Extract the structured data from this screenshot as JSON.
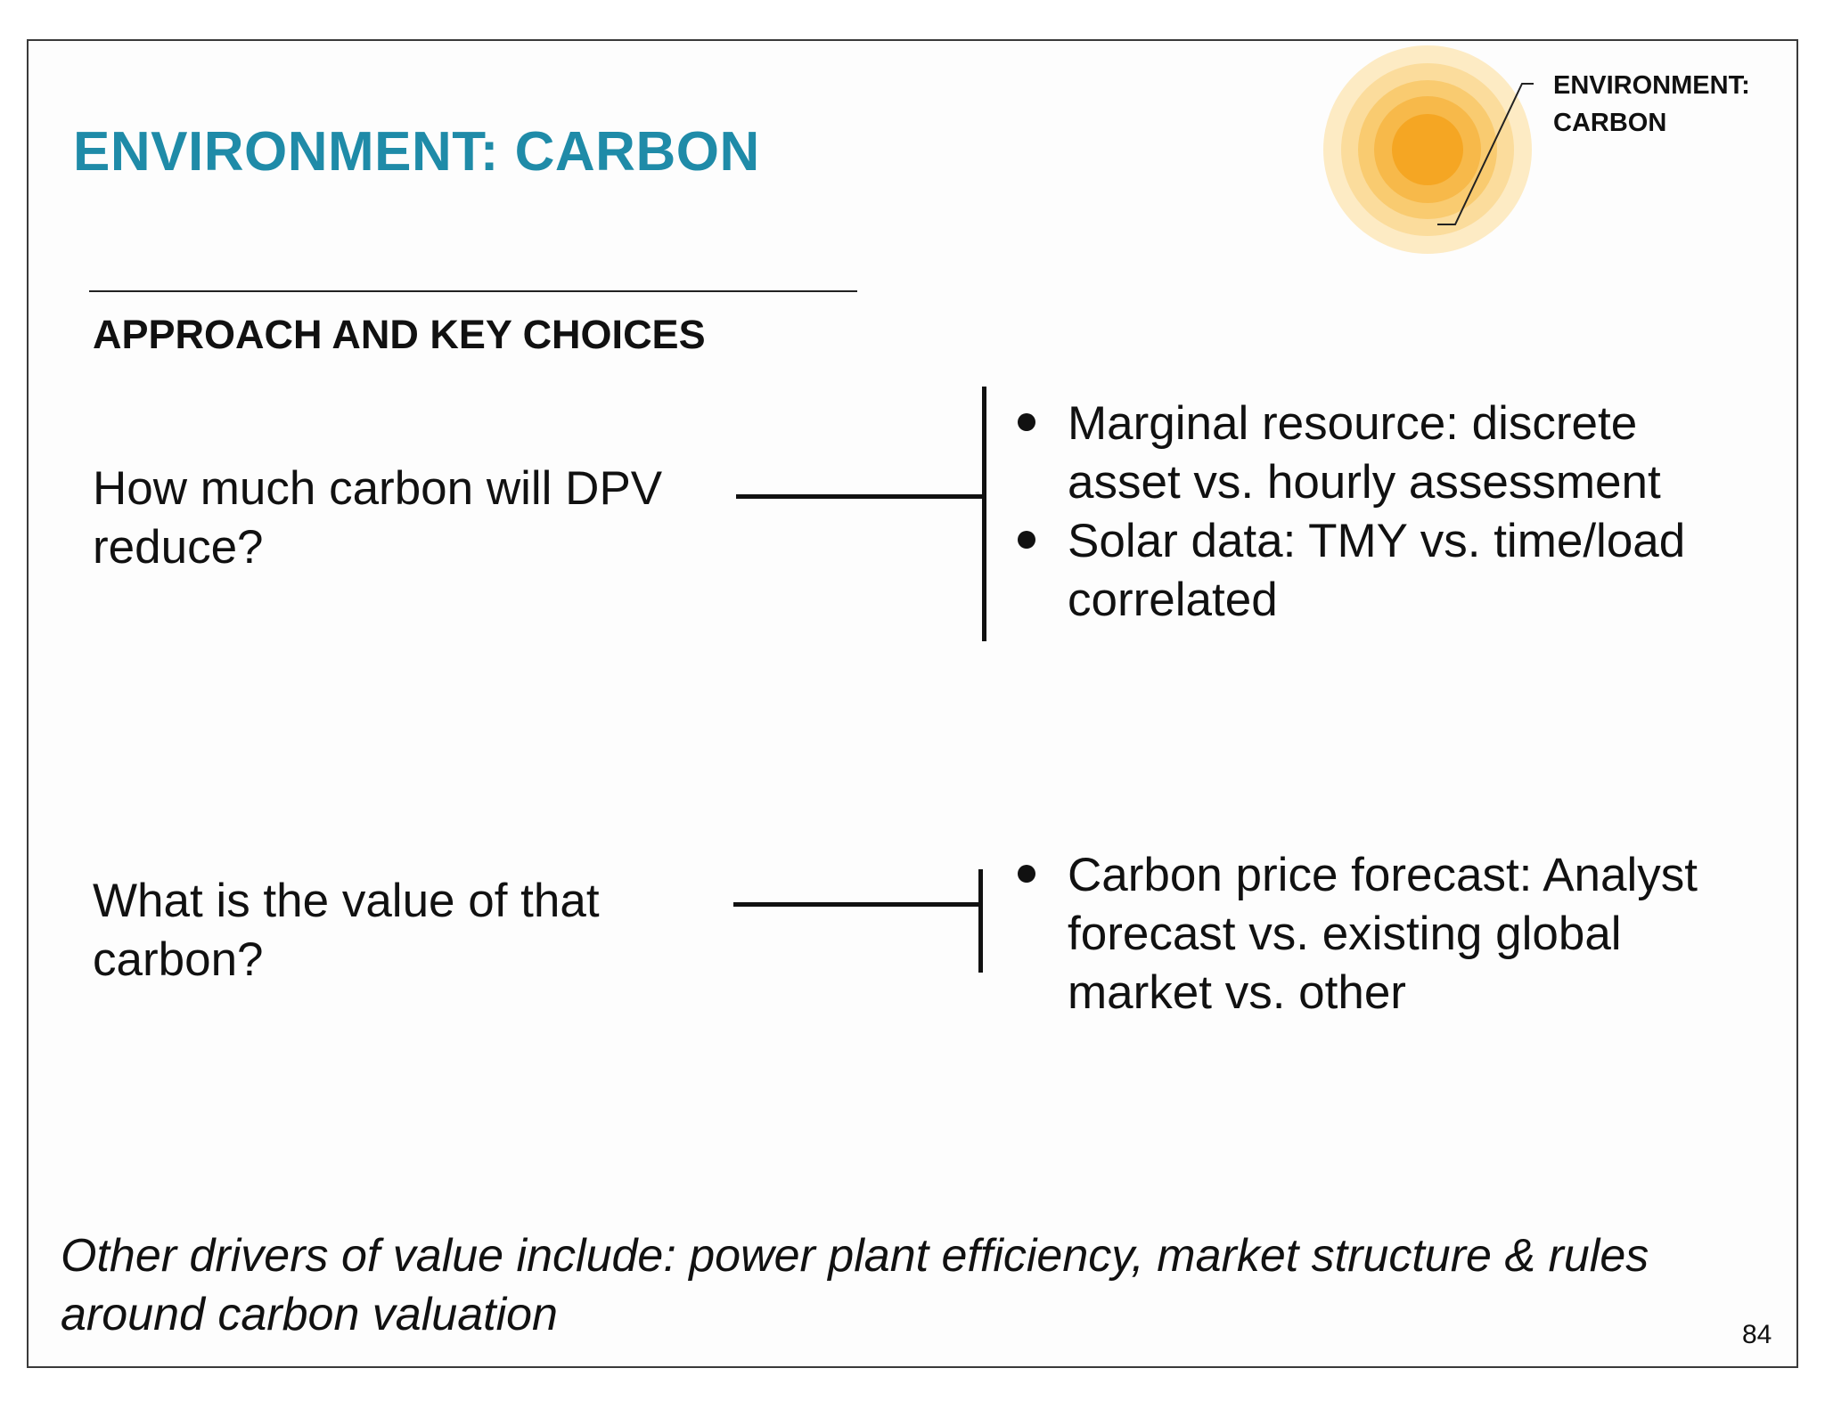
{
  "slide": {
    "title": "ENVIRONMENT: CARBON",
    "badge": {
      "line1": "ENVIRONMENT:",
      "line2": "CARBON",
      "icon": "sun-icon",
      "colors": [
        "#fdebc4",
        "#fbd88a",
        "#f8c25a",
        "#f5a623"
      ]
    },
    "section_heading": "APPROACH AND KEY CHOICES",
    "questions": [
      {
        "text": "How much carbon will DPV reduce?",
        "bullets": [
          "Marginal resource: discrete asset vs. hourly assessment",
          "Solar data: TMY vs. time/load correlated"
        ]
      },
      {
        "text": "What is the value of that carbon?",
        "bullets": [
          "Carbon price forecast: Analyst forecast vs. existing global market vs. other"
        ]
      }
    ],
    "footer_note": "Other drivers of value include: power plant efficiency, market structure & rules around carbon valuation",
    "page_number": "84",
    "accent_color": "#1f8ba8"
  }
}
